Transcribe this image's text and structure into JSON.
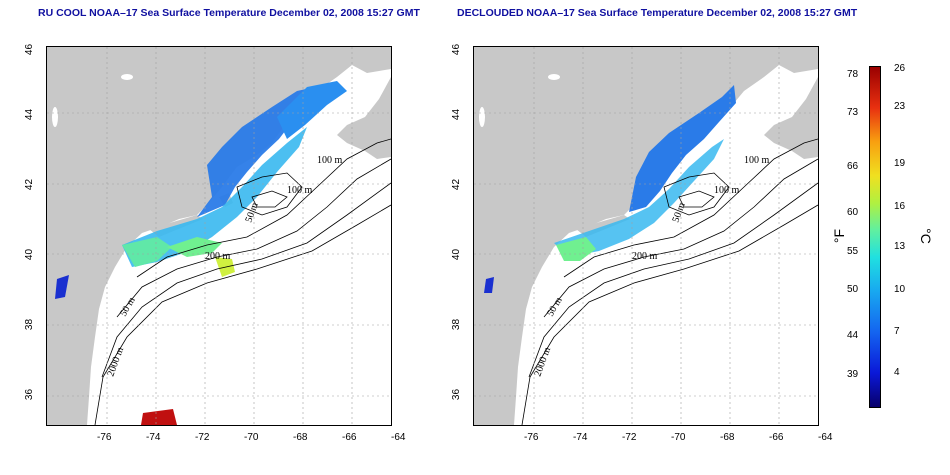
{
  "panels": [
    {
      "title": "RU COOL NOAA–17 Sea Surface Temperature December 02, 2008 15:27 GMT",
      "x_ticks": [
        "-76",
        "-74",
        "-72",
        "-70",
        "-68",
        "-66",
        "-64"
      ],
      "y_ticks": [
        "46",
        "44",
        "42",
        "40",
        "38",
        "36"
      ],
      "contour_labels": [
        "100 m",
        "100 m",
        "50 m",
        "200 m",
        "50 m",
        "2000 m"
      ]
    },
    {
      "title": "DECLOUDED NOAA–17 Sea Surface Temperature December 02, 2008 15:27 GMT",
      "x_ticks": [
        "-76",
        "-74",
        "-72",
        "-70",
        "-68",
        "-66",
        "-64"
      ],
      "y_ticks": [
        "46",
        "44",
        "42",
        "40",
        "38",
        "36"
      ],
      "contour_labels": [
        "100 m",
        "100 m",
        "50 m",
        "200 m",
        "50 m",
        "2000 m"
      ]
    }
  ],
  "colorbar": {
    "fahrenheit_ticks": [
      "78",
      "73",
      "66",
      "60",
      "55",
      "50",
      "44",
      "39"
    ],
    "celsius_ticks": [
      "26",
      "23",
      "19",
      "16",
      "13",
      "10",
      "7",
      "4"
    ],
    "left_unit": "°F",
    "right_unit": "°C"
  },
  "colors": {
    "land": "#c8c8c8",
    "ocean": "#ffffff",
    "title": "#1010a0",
    "grid": "#a0a0a0"
  }
}
